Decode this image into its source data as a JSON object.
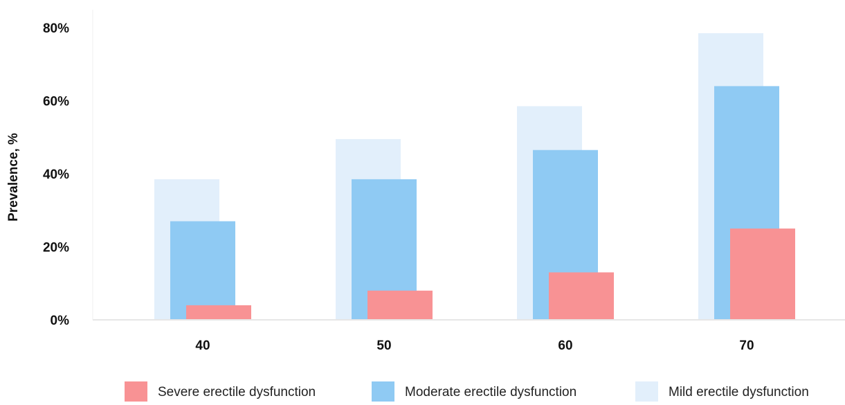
{
  "chart_data": {
    "type": "bar",
    "title": "",
    "xlabel": "",
    "ylabel": "Prevalence, %",
    "categories": [
      "40",
      "50",
      "60",
      "70"
    ],
    "y_ticks": [
      "0%",
      "20%",
      "40%",
      "60%",
      "80%"
    ],
    "ylim": [
      0,
      80
    ],
    "grid": false,
    "legend_position": "bottom",
    "series": [
      {
        "name": "Severe erectile dysfunction",
        "values": [
          4,
          8,
          13,
          25
        ],
        "color": "#f89294"
      },
      {
        "name": "Moderate erectile dysfunction",
        "values": [
          27,
          38.5,
          46.5,
          64
        ],
        "color": "#8fcaf3"
      },
      {
        "name": "Mild erectile dysfunction",
        "values": [
          38.5,
          49.5,
          58.5,
          78.5
        ],
        "color": "#e2effb"
      }
    ]
  }
}
